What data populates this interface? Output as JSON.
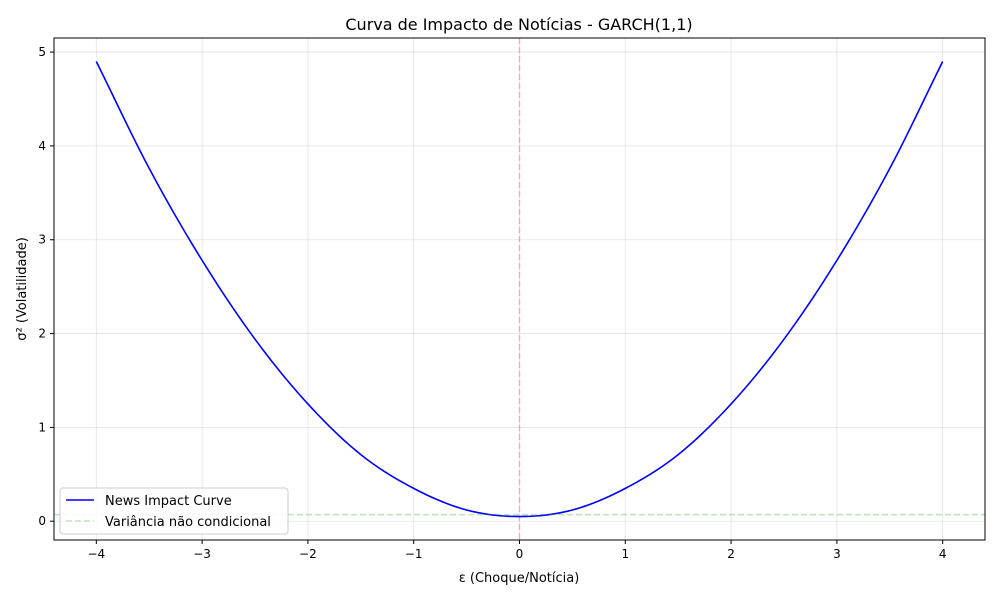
{
  "chart_data": {
    "type": "line",
    "title": "Curva de Impacto de Notícias - GARCH(1,1)",
    "xlabel": "ε (Choque/Notícia)",
    "ylabel": "σ² (Volatilidade)",
    "xlim": [
      -4.4,
      4.4
    ],
    "ylim": [
      -0.2,
      5.15
    ],
    "grid": true,
    "legend_position": "lower-left",
    "x_ticks": [
      -4,
      -3,
      -2,
      -1,
      0,
      1,
      2,
      3,
      4
    ],
    "x_tick_labels": [
      "−4",
      "−3",
      "−2",
      "−1",
      "0",
      "1",
      "2",
      "3",
      "4"
    ],
    "y_ticks": [
      0,
      1,
      2,
      3,
      4,
      5
    ],
    "y_tick_labels": [
      "0",
      "1",
      "2",
      "3",
      "4",
      "5"
    ],
    "series": [
      {
        "name": "News Impact Curve",
        "color": "#0000ff",
        "style": "solid",
        "x": [
          -4.0,
          -3.5,
          -3.0,
          -2.5,
          -2.0,
          -1.5,
          -1.0,
          -0.5,
          0.0,
          0.5,
          1.0,
          1.5,
          2.0,
          2.5,
          3.0,
          3.5,
          4.0
        ],
        "y": [
          4.9,
          3.76,
          2.78,
          1.94,
          1.25,
          0.71,
          0.35,
          0.12,
          0.05,
          0.12,
          0.35,
          0.71,
          1.25,
          1.94,
          2.78,
          3.76,
          4.9
        ]
      },
      {
        "name": "Variância não condicional",
        "color": "#2ca02c",
        "style": "dashed",
        "horizontal_line": 0.07
      }
    ],
    "reference_lines": [
      {
        "orientation": "vertical",
        "x": 0,
        "color": "#d62728",
        "style": "dashed"
      }
    ]
  }
}
